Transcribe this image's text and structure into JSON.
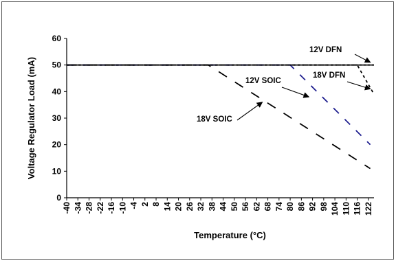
{
  "chart_data": {
    "type": "line",
    "title": "",
    "xlabel": "Temperature (°C)",
    "ylabel": "Voltage Regulator Load (mA)",
    "ylim": [
      0,
      60
    ],
    "xlim": [
      -40,
      125
    ],
    "yticks": [
      0,
      10,
      20,
      30,
      40,
      50,
      60
    ],
    "xticks": [
      -40,
      -34,
      -28,
      -22,
      -16,
      -10,
      -4,
      2,
      8,
      14,
      20,
      26,
      32,
      38,
      44,
      50,
      56,
      62,
      68,
      74,
      80,
      86,
      92,
      98,
      104,
      110,
      116,
      122
    ],
    "grid": false,
    "legend": "none",
    "series": [
      {
        "name": "12V DFN",
        "color": "#000000",
        "style": "dotted",
        "x": [
          -40,
          125
        ],
        "y": [
          50,
          50
        ]
      },
      {
        "name": "18V DFN",
        "color": "#000000",
        "style": "short-dash",
        "x": [
          -40,
          116,
          125
        ],
        "y": [
          50,
          50,
          39
        ]
      },
      {
        "name": "12V SOIC",
        "color": "#1f1f8f",
        "style": "dash",
        "x": [
          -40,
          80,
          123
        ],
        "y": [
          50,
          50,
          20
        ]
      },
      {
        "name": "18V SOIC",
        "color": "#000000",
        "style": "long-dash",
        "x": [
          -40,
          36,
          123
        ],
        "y": [
          50,
          50,
          11
        ]
      }
    ],
    "annotations": [
      {
        "text": "12V DFN",
        "arrow_to": [
          123,
          51
        ]
      },
      {
        "text": "18V DFN",
        "arrow_to": [
          123,
          41
        ]
      },
      {
        "text": "12V SOIC",
        "arrow_to": [
          90,
          38
        ]
      },
      {
        "text": "18V SOIC",
        "arrow_to": [
          65,
          36
        ]
      }
    ],
    "reference_line": {
      "y": 50,
      "color": "#000000",
      "style": "solid"
    }
  }
}
